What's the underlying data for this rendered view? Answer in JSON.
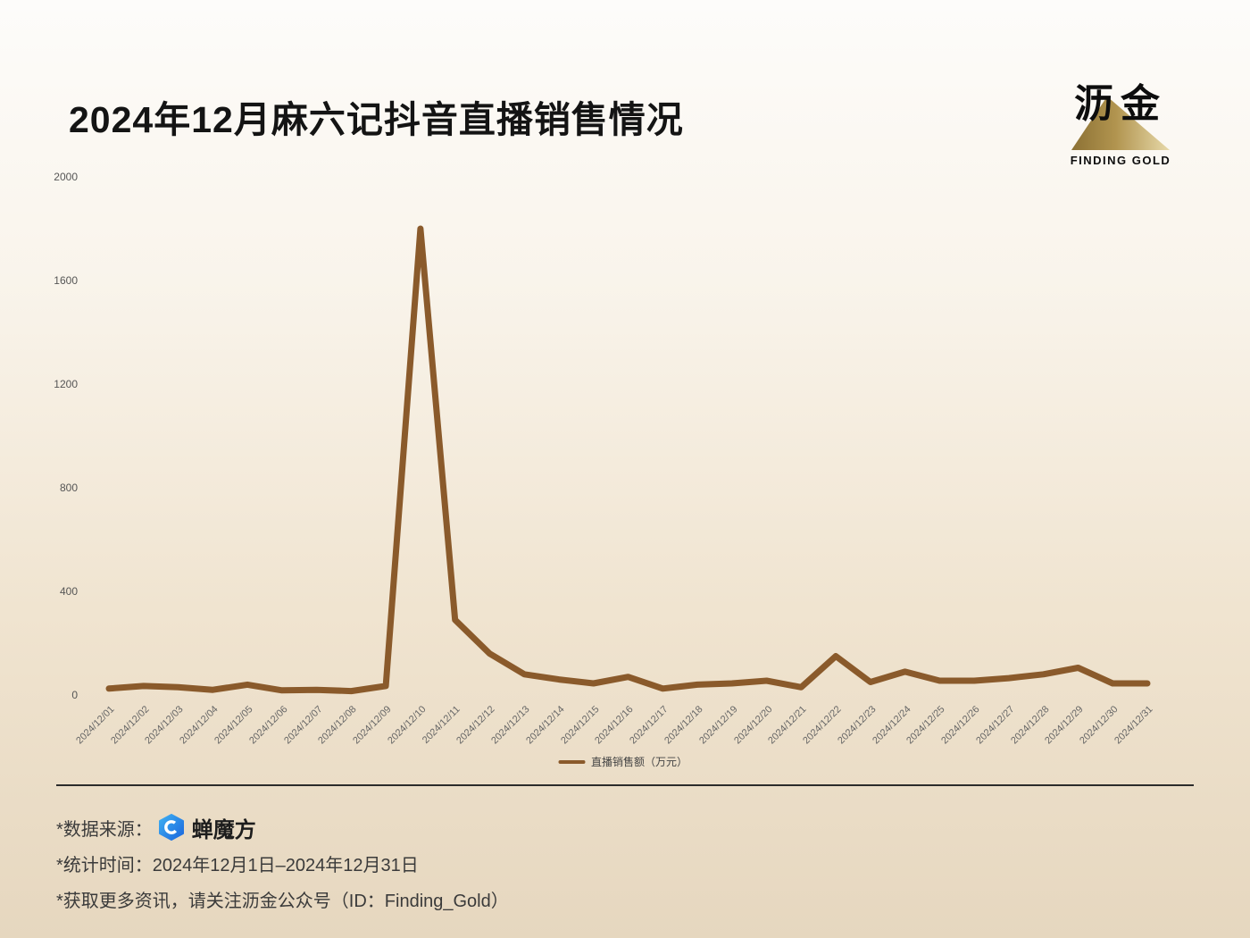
{
  "title": "2024年12月麻六记抖音直播销售情况",
  "logo": {
    "cn": "沥金",
    "en": "FINDING GOLD"
  },
  "footer": {
    "source_label": "*数据来源：",
    "source_name": "蝉魔方",
    "period": "*统计时间：2024年12月1日–2024年12月31日",
    "more": "*获取更多资讯，请关注沥金公众号（ID：Finding_Gold）"
  },
  "chart_data": {
    "type": "line",
    "title": "2024年12月麻六记抖音直播销售情况",
    "x": [
      "2024/12/01",
      "2024/12/02",
      "2024/12/03",
      "2024/12/04",
      "2024/12/05",
      "2024/12/06",
      "2024/12/07",
      "2024/12/08",
      "2024/12/09",
      "2024/12/10",
      "2024/12/11",
      "2024/12/12",
      "2024/12/13",
      "2024/12/14",
      "2024/12/15",
      "2024/12/16",
      "2024/12/17",
      "2024/12/18",
      "2024/12/19",
      "2024/12/20",
      "2024/12/21",
      "2024/12/22",
      "2024/12/23",
      "2024/12/24",
      "2024/12/25",
      "2024/12/26",
      "2024/12/27",
      "2024/12/28",
      "2024/12/29",
      "2024/12/30",
      "2024/12/31"
    ],
    "series": [
      {
        "name": "直播销售额（万元）",
        "color": "#8a5a2b",
        "values": [
          25,
          35,
          30,
          20,
          40,
          18,
          20,
          15,
          35,
          1800,
          290,
          160,
          80,
          60,
          45,
          70,
          25,
          40,
          45,
          55,
          30,
          150,
          50,
          90,
          55,
          55,
          65,
          80,
          105,
          45,
          45
        ]
      }
    ],
    "xlabel": "",
    "ylabel": "",
    "ylim": [
      0,
      2000
    ],
    "yticks": [
      0,
      400,
      800,
      1200,
      1600,
      2000
    ],
    "grid": false,
    "legend_position": "bottom"
  }
}
